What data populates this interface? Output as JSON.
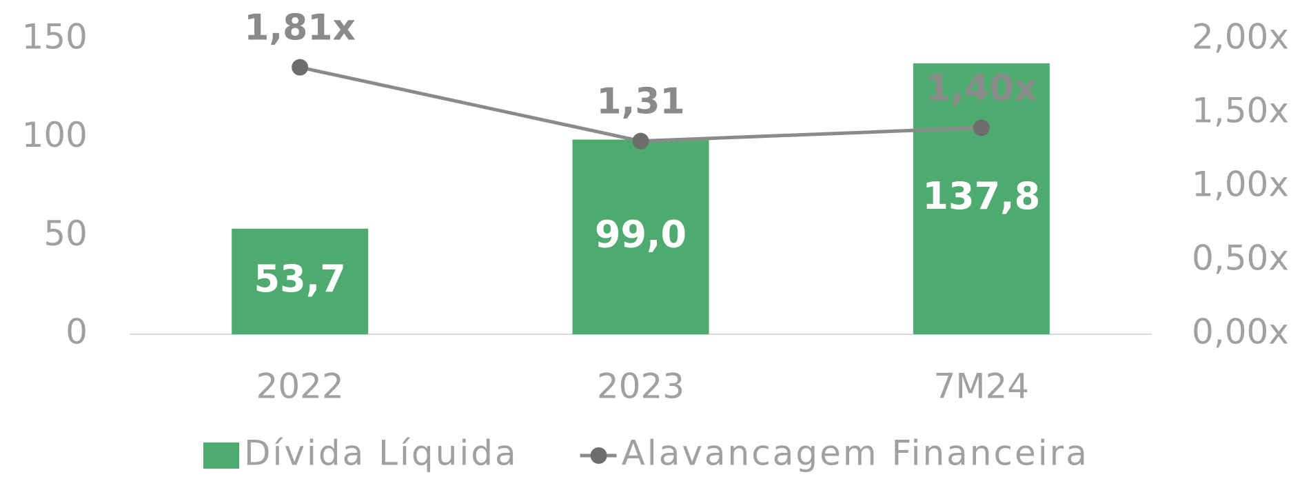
{
  "chart_data": {
    "type": "bar_line",
    "categories": [
      "2022",
      "2023",
      "7M24"
    ],
    "series": [
      {
        "name": "Dívida Líquida",
        "type": "bar",
        "color": "#4faa6f",
        "values": [
          53.7,
          99.0,
          137.8
        ],
        "value_labels": [
          "53,7",
          "99,0",
          "137,8"
        ]
      },
      {
        "name": "Alavancagem Financeira",
        "type": "line",
        "axis": "y2",
        "color": "#8a8a8a",
        "marker_color": "#6d6d6d",
        "values": [
          1.81,
          1.31,
          1.4
        ],
        "value_labels": [
          "1,81x",
          "1,31",
          "1,40x"
        ]
      }
    ],
    "ylim": [
      0,
      150
    ],
    "yticks": [
      0,
      50,
      100,
      150
    ],
    "y2lim": [
      0,
      2
    ],
    "y2ticks": [
      {
        "value": 0,
        "label": "0,00x"
      },
      {
        "value": 0.5,
        "label": "0,50x"
      },
      {
        "value": 1,
        "label": "1,00x"
      },
      {
        "value": 1.5,
        "label": "1,50x"
      },
      {
        "value": 2,
        "label": "2,00x"
      }
    ],
    "legend": "bottom"
  }
}
